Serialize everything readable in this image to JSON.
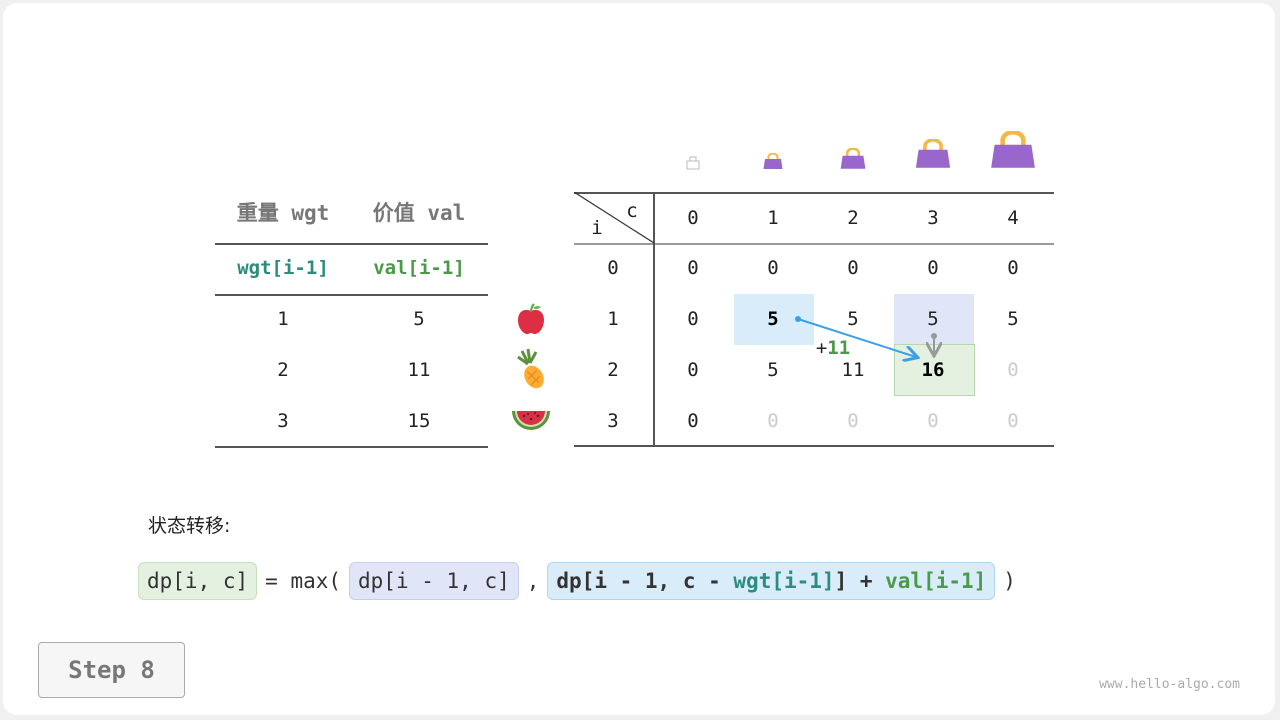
{
  "left_table": {
    "headers": [
      "重量 wgt",
      "价值 val"
    ],
    "subheaders": [
      "wgt[i-1]",
      "val[i-1]"
    ],
    "rows": [
      [
        "1",
        "5"
      ],
      [
        "2",
        "11"
      ],
      [
        "3",
        "15"
      ]
    ]
  },
  "items": [
    "apple-icon",
    "pineapple-icon",
    "watermelon-icon"
  ],
  "dp_table": {
    "corner_i": "i",
    "corner_c": "c",
    "col_headers": [
      "0",
      "1",
      "2",
      "3",
      "4"
    ],
    "row_headers": [
      "0",
      "1",
      "2",
      "3"
    ],
    "rows": [
      [
        "0",
        "0",
        "0",
        "0",
        "0"
      ],
      [
        "0",
        "5",
        "5",
        "5",
        "5"
      ],
      [
        "0",
        "5",
        "11",
        "16",
        "0"
      ],
      [
        "0",
        "0",
        "0",
        "0",
        "0"
      ]
    ],
    "filled": [
      [
        true,
        true,
        true,
        true,
        true
      ],
      [
        true,
        true,
        true,
        true,
        true
      ],
      [
        true,
        true,
        true,
        true,
        false
      ],
      [
        true,
        false,
        false,
        false,
        false
      ]
    ],
    "annotation": {
      "plus": "+",
      "value": "11"
    }
  },
  "colors": {
    "blue_cell": "#d9ecfa",
    "purple_cell": "#e1e5f8",
    "green_cell": "#e4f0e0",
    "arrow": "#3aa1e6",
    "bag": "#9966cc"
  },
  "transition_label": "状态转移:",
  "formula": {
    "lhs": "dp[i, c]",
    "eq": "= max(",
    "opt1": "dp[i - 1, c]",
    "comma": ",",
    "opt2a": "dp[i - 1, c - ",
    "opt2b": "wgt[i-1]",
    "opt2c": "] + ",
    "opt2d": "val[i-1]",
    "close": ")"
  },
  "step_label": "Step 8",
  "watermark": "www.hello-algo.com"
}
